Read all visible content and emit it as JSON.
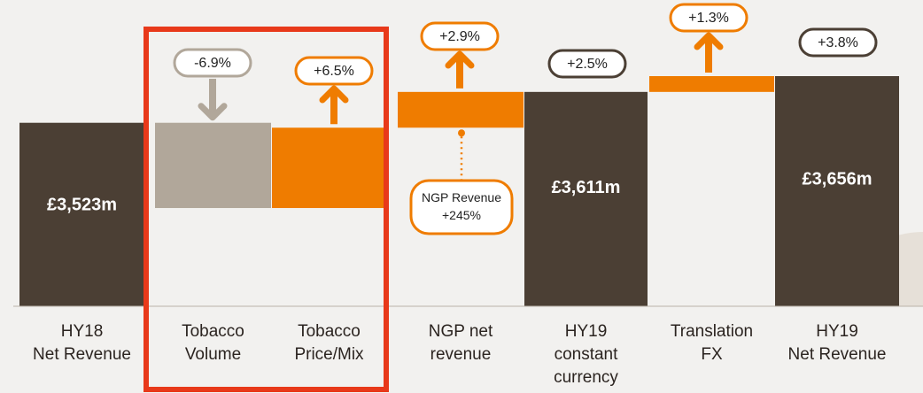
{
  "colors": {
    "total": "#4b3f34",
    "volume": "#b1a79a",
    "increase": "#ef7c00",
    "highlight_box": "#e8391a",
    "pill_neutral_border": "#4b3f34",
    "pill_volume_border": "#b1a79a",
    "pill_increase_border": "#ef7c00",
    "background": "#f2f1ef"
  },
  "chart_data": {
    "type": "waterfall",
    "categories": [
      [
        "HY18",
        "Net Revenue"
      ],
      [
        "Tobacco",
        "Volume"
      ],
      [
        "Tobacco",
        "Price/Mix"
      ],
      [
        "NGP net",
        "revenue"
      ],
      [
        "HY19",
        "constant",
        "currency"
      ],
      [
        "Translation",
        "FX"
      ],
      [
        "HY19",
        "Net Revenue"
      ]
    ],
    "bars": [
      {
        "kind": "total",
        "start": 0,
        "end": 3523,
        "value_label": "£3,523m",
        "change_label": ""
      },
      {
        "kind": "decrease",
        "start": 3523,
        "end": 3280,
        "value_label": "",
        "change_label": "-6.9%"
      },
      {
        "kind": "increase",
        "start": 3280,
        "end": 3509,
        "value_label": "",
        "change_label": "+6.5%"
      },
      {
        "kind": "increase",
        "start": 3509,
        "end": 3611,
        "value_label": "",
        "change_label": "+2.9%"
      },
      {
        "kind": "total",
        "start": 0,
        "end": 3611,
        "value_label": "£3,611m",
        "change_label": "+2.5%"
      },
      {
        "kind": "increase",
        "start": 3611,
        "end": 3656,
        "value_label": "",
        "change_label": "+1.3%"
      },
      {
        "kind": "total",
        "start": 0,
        "end": 3656,
        "value_label": "£3,656m",
        "change_label": "+3.8%"
      }
    ],
    "annotation": {
      "lines": [
        "NGP Revenue",
        "+245%"
      ],
      "attached_to": "NGP net revenue"
    },
    "highlight": {
      "from_category": 1,
      "to_category": 2
    }
  }
}
